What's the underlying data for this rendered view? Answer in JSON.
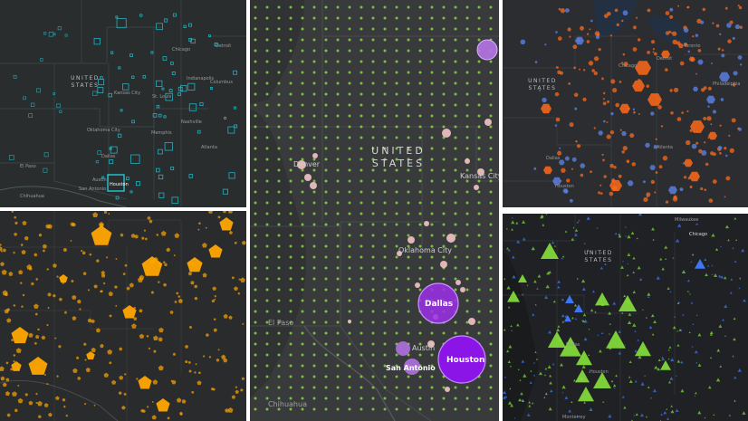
{
  "panels": {
    "top_left": {
      "country": [
        "UNITED",
        "STATES"
      ],
      "cities": [
        "Dallas",
        "Houston",
        "San Antonio",
        "Austin",
        "Chihuahua",
        "El Paso",
        "Oklahoma City",
        "Kansas City",
        "Memphis",
        "Nashville",
        "Atlanta",
        "Chicago",
        "St. Louis",
        "Indianapolis",
        "Detroit",
        "Columbus"
      ],
      "accent": "#22c8d8"
    },
    "middle": {
      "country": [
        "UNITED",
        "STATES"
      ],
      "cities": [
        "Denver",
        "Kansas City",
        "Oklahoma City",
        "Dallas",
        "Austin",
        "San Antonio",
        "Houston",
        "El Paso",
        "Chihuahua"
      ],
      "accent_dots": "#8bd348",
      "accent_cities": "#8a2be2",
      "accent_small": "#f3c4c4"
    },
    "top_right": {
      "country": [
        "UNITED",
        "STATES"
      ],
      "cities": [
        "Toronto",
        "Chicago",
        "Detroit",
        "Philadelphia",
        "Dallas",
        "Houston",
        "Atlanta"
      ],
      "accent_orange": "#ff6a1a",
      "accent_blue": "#5b7fe0"
    },
    "bottom_left": {
      "accent": "#ffa600"
    },
    "bottom_right": {
      "country": [
        "UNITED",
        "STATES"
      ],
      "cities": [
        "Milwaukee",
        "Chicago",
        "Dallas",
        "Houston",
        "Monterrey"
      ],
      "accent_green": "#86e23b",
      "accent_blue": "#3f7cff"
    }
  }
}
